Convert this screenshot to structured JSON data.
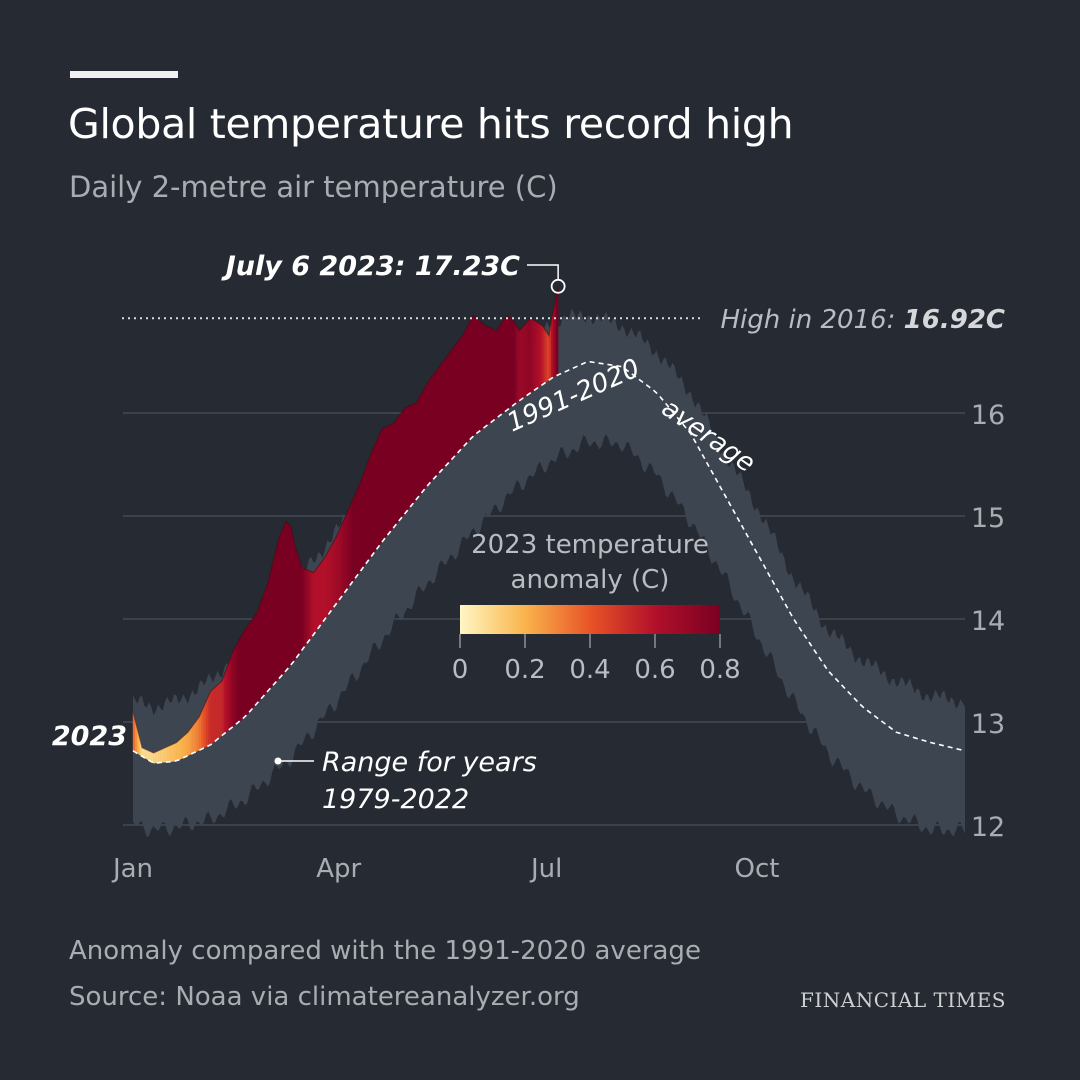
{
  "header": {
    "title": "Global temperature hits record high",
    "subtitle": "Daily 2-metre air temperature (C)"
  },
  "footer": {
    "note": "Anomaly compared with the 1991-2020 average",
    "source": "Source: Noaa via climatereanalyzer.org",
    "brand": "FINANCIAL TIMES"
  },
  "colors": {
    "background": "#262a33",
    "range_band": "#3c4550",
    "gridline": "#4b4f57",
    "anomaly_scale": [
      "#fff7c4",
      "#f9b44c",
      "#e85427",
      "#b2102a",
      "#7a0022"
    ]
  },
  "chart_data": {
    "type": "area",
    "x_unit": "day of year",
    "xlim": [
      1,
      365
    ],
    "ylim": [
      12,
      17.2
    ],
    "x_ticks": [
      {
        "day": 1,
        "label": "Jan"
      },
      {
        "day": 91,
        "label": "Apr"
      },
      {
        "day": 182,
        "label": "Jul"
      },
      {
        "day": 274,
        "label": "Oct"
      }
    ],
    "y_ticks": [
      12,
      13,
      14,
      15,
      16
    ],
    "y_tick_labels": [
      "12",
      "13",
      "14",
      "15",
      "16"
    ],
    "grid": true,
    "series": [
      {
        "name": "1991-2020 average",
        "x": [
          1,
          10,
          20,
          35,
          50,
          70,
          90,
          110,
          130,
          150,
          170,
          185,
          200,
          215,
          230,
          245,
          260,
          275,
          290,
          305,
          320,
          335,
          350,
          365
        ],
        "y": [
          12.72,
          12.6,
          12.62,
          12.78,
          13.05,
          13.55,
          14.15,
          14.75,
          15.3,
          15.78,
          16.12,
          16.35,
          16.5,
          16.45,
          16.2,
          15.8,
          15.2,
          14.6,
          14.0,
          13.5,
          13.15,
          12.9,
          12.8,
          12.72
        ]
      },
      {
        "name": "Range for years 1979-2022",
        "x": [
          1,
          10,
          20,
          35,
          50,
          70,
          90,
          110,
          130,
          150,
          170,
          185,
          200,
          215,
          230,
          245,
          260,
          275,
          290,
          305,
          320,
          335,
          350,
          365
        ],
        "low": [
          12.0,
          11.95,
          11.98,
          12.05,
          12.25,
          12.65,
          13.2,
          13.8,
          14.35,
          14.85,
          15.3,
          15.55,
          15.72,
          15.7,
          15.4,
          14.95,
          14.4,
          13.8,
          13.2,
          12.7,
          12.35,
          12.1,
          11.95,
          11.95
        ],
        "high": [
          13.2,
          13.15,
          13.2,
          13.4,
          13.75,
          14.3,
          14.85,
          15.45,
          15.95,
          16.35,
          16.55,
          16.9,
          16.95,
          16.85,
          16.6,
          16.2,
          15.6,
          15.05,
          14.4,
          13.9,
          13.6,
          13.4,
          13.25,
          13.2
        ]
      },
      {
        "name": "2023",
        "x": [
          1,
          5,
          10,
          15,
          20,
          25,
          30,
          35,
          40,
          45,
          50,
          55,
          60,
          65,
          68,
          70,
          72,
          75,
          80,
          85,
          90,
          95,
          100,
          105,
          110,
          115,
          120,
          125,
          130,
          135,
          140,
          145,
          150,
          155,
          160,
          163,
          165,
          168,
          170,
          175,
          180,
          183,
          184,
          185,
          186,
          187
        ],
        "y": [
          13.1,
          12.75,
          12.7,
          12.75,
          12.8,
          12.9,
          13.05,
          13.3,
          13.4,
          13.7,
          13.9,
          14.05,
          14.35,
          14.8,
          14.95,
          14.9,
          14.7,
          14.5,
          14.45,
          14.6,
          14.8,
          15.05,
          15.3,
          15.6,
          15.85,
          15.9,
          16.05,
          16.1,
          16.3,
          16.45,
          16.6,
          16.75,
          16.95,
          16.85,
          16.8,
          16.9,
          16.95,
          16.88,
          16.8,
          16.92,
          16.85,
          16.75,
          16.9,
          17.0,
          17.12,
          17.23
        ]
      }
    ],
    "record_annotation": {
      "day": 187,
      "value": 17.23,
      "label": "July 6 2023: 17.23C"
    },
    "previous_high": {
      "value": 16.92,
      "label_prefix": "High in 2016: ",
      "label_value": "16.92C"
    },
    "labels": {
      "series_2023": "2023",
      "average": "1991-2020 average",
      "range_line1": "Range for years",
      "range_line2": "1979-2022"
    },
    "legend": {
      "title_line1": "2023 temperature",
      "title_line2": "anomaly (C)",
      "ticks": [
        "0",
        "0.2",
        "0.4",
        "0.6",
        "0.8"
      ],
      "range": [
        0,
        0.8
      ]
    }
  }
}
